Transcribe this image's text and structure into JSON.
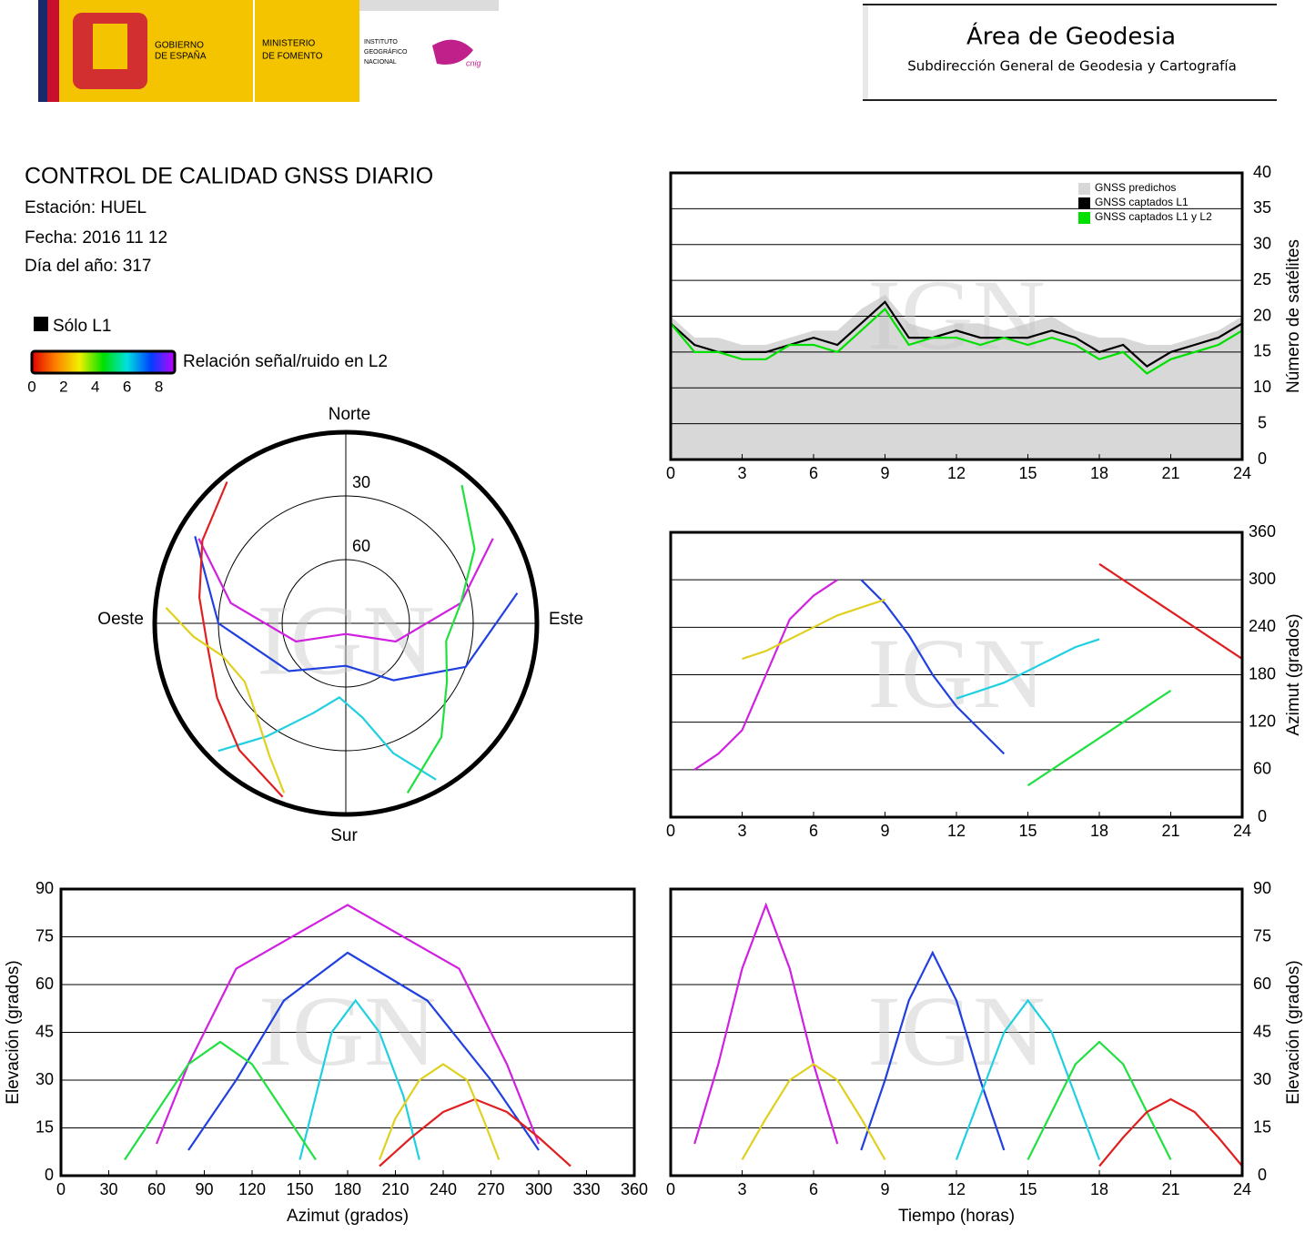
{
  "header": {
    "gov_line1": "GOBIERNO",
    "gov_line2": "DE ESPAÑA",
    "ministry_line1": "MINISTERIO",
    "ministry_line2": "DE FOMENTO",
    "institute_lines": [
      "INSTITUTO",
      "GEOGRÁFICO",
      "NACIONAL"
    ],
    "cnig": "cnig",
    "area": "Área de Geodesia",
    "subdirection": "Subdirección General de Geodesia y Cartografía"
  },
  "report": {
    "title": "CONTROL DE CALIDAD GNSS DIARIO",
    "station": "Estación: HUEL",
    "date": "Fecha: 2016 11 12",
    "doy": "Día del año: 317",
    "legend_l1": "Sólo L1",
    "colorbar": {
      "label": "Relación señal/ruido en L2",
      "lim": [
        0,
        9
      ],
      "ticks": [
        0,
        2,
        4,
        6,
        8
      ],
      "colors": [
        "#e00000",
        "#ff8000",
        "#f0f000",
        "#00e000",
        "#00e0e0",
        "#0040ff",
        "#c000ff"
      ]
    }
  },
  "chart_data": [
    {
      "type": "line",
      "ylabel": "Número de satélites",
      "yaxis_side": "right",
      "xlim": [
        0,
        24
      ],
      "xticks": [
        0,
        3,
        6,
        9,
        12,
        15,
        18,
        21,
        24
      ],
      "ylim": [
        0,
        40
      ],
      "yticks": [
        0,
        5,
        10,
        15,
        20,
        25,
        30,
        35,
        40
      ],
      "grid": true,
      "legend": "upper right",
      "watermark": "IGN",
      "x": [
        0,
        1,
        2,
        3,
        4,
        5,
        6,
        7,
        8,
        9,
        10,
        11,
        12,
        13,
        14,
        15,
        16,
        17,
        18,
        19,
        20,
        21,
        22,
        23,
        24
      ],
      "series": [
        {
          "name": "GNSS predichos",
          "color": "#d8d8d8",
          "style": "area",
          "values": [
            20,
            17,
            17,
            16,
            16,
            17,
            18,
            18,
            21,
            23,
            19,
            18,
            19,
            19,
            18,
            19,
            20,
            18,
            17,
            17,
            16,
            16,
            17,
            18,
            20
          ]
        },
        {
          "name": "GNSS captados L1",
          "color": "#000000",
          "style": "line",
          "values": [
            19,
            16,
            15,
            15,
            15,
            16,
            17,
            16,
            19,
            22,
            17,
            17,
            18,
            17,
            17,
            17,
            18,
            17,
            15,
            16,
            13,
            15,
            16,
            17,
            19
          ]
        },
        {
          "name": "GNSS captados L1 y L2",
          "color": "#00e000",
          "style": "line",
          "values": [
            19,
            15,
            15,
            14,
            14,
            16,
            16,
            15,
            18,
            21,
            16,
            17,
            17,
            16,
            17,
            16,
            17,
            16,
            14,
            15,
            12,
            14,
            15,
            16,
            18
          ]
        }
      ]
    },
    {
      "type": "line",
      "ylabel": "Azimut (grados)",
      "yaxis_side": "right",
      "xlim": [
        0,
        24
      ],
      "xticks": [
        0,
        3,
        6,
        9,
        12,
        15,
        18,
        21,
        24
      ],
      "ylim": [
        0,
        360
      ],
      "yticks": [
        0,
        60,
        120,
        180,
        240,
        300,
        360
      ],
      "grid": true,
      "watermark": "IGN",
      "series": [
        {
          "color": "#d020e0",
          "x": [
            1,
            2,
            3,
            4,
            5,
            6,
            7
          ],
          "values": [
            60,
            80,
            110,
            180,
            250,
            280,
            300
          ]
        },
        {
          "color": "#2040e0",
          "x": [
            8,
            9,
            10,
            11,
            12,
            13,
            14
          ],
          "values": [
            300,
            270,
            230,
            180,
            140,
            110,
            80
          ]
        },
        {
          "color": "#20d0e0",
          "x": [
            12,
            13,
            14,
            15,
            16,
            17,
            18
          ],
          "values": [
            150,
            160,
            170,
            185,
            200,
            215,
            225
          ]
        },
        {
          "color": "#20e040",
          "x": [
            15,
            16,
            17,
            18,
            19,
            20,
            21
          ],
          "values": [
            40,
            60,
            80,
            100,
            120,
            140,
            160
          ]
        },
        {
          "color": "#e02020",
          "x": [
            18,
            19,
            20,
            21,
            22,
            23,
            24
          ],
          "values": [
            320,
            300,
            280,
            260,
            240,
            220,
            200
          ]
        },
        {
          "color": "#e0d020",
          "x": [
            3,
            4,
            5,
            6,
            7,
            8,
            9
          ],
          "values": [
            200,
            210,
            225,
            240,
            255,
            265,
            275
          ]
        }
      ]
    },
    {
      "type": "polar",
      "north": "Norte",
      "south": "Sur",
      "east": "Este",
      "west": "Oeste",
      "rlim": [
        90,
        0
      ],
      "rticks": [
        30,
        60
      ],
      "watermark": "IGN",
      "series": [
        {
          "color": "#d020e0",
          "theta": [
            60,
            80,
            110,
            180,
            250,
            280,
            300
          ],
          "r": [
            10,
            35,
            65,
            85,
            65,
            35,
            10
          ]
        },
        {
          "color": "#2040e0",
          "theta": [
            300,
            270,
            230,
            180,
            140,
            110,
            80
          ],
          "r": [
            8,
            30,
            55,
            70,
            55,
            30,
            8
          ]
        },
        {
          "color": "#20d0e0",
          "theta": [
            150,
            160,
            170,
            185,
            200,
            215,
            225
          ],
          "r": [
            5,
            25,
            45,
            55,
            45,
            25,
            5
          ]
        },
        {
          "color": "#20e040",
          "theta": [
            40,
            60,
            80,
            100,
            120,
            140,
            160
          ],
          "r": [
            5,
            20,
            35,
            42,
            35,
            20,
            5
          ]
        },
        {
          "color": "#e02020",
          "theta": [
            320,
            300,
            280,
            260,
            240,
            220,
            200
          ],
          "r": [
            3,
            12,
            20,
            24,
            20,
            12,
            3
          ]
        },
        {
          "color": "#e0d020",
          "theta": [
            200,
            210,
            225,
            240,
            255,
            265,
            275
          ],
          "r": [
            5,
            18,
            30,
            35,
            30,
            18,
            5
          ]
        }
      ]
    },
    {
      "type": "line",
      "xlabel": "Azimut (grados)",
      "ylabel": "Elevación (grados)",
      "yaxis_side": "left",
      "xlim": [
        0,
        360
      ],
      "xticks": [
        0,
        30,
        60,
        90,
        120,
        150,
        180,
        210,
        240,
        270,
        300,
        330,
        360
      ],
      "ylim": [
        0,
        90
      ],
      "yticks": [
        0,
        15,
        30,
        45,
        60,
        75,
        90
      ],
      "grid": true,
      "watermark": "IGN",
      "series": [
        {
          "color": "#d020e0",
          "x": [
            60,
            80,
            110,
            180,
            250,
            280,
            300
          ],
          "values": [
            10,
            35,
            65,
            85,
            65,
            35,
            10
          ]
        },
        {
          "color": "#2040e0",
          "x": [
            300,
            270,
            230,
            180,
            140,
            110,
            80
          ],
          "values": [
            8,
            30,
            55,
            70,
            55,
            30,
            8
          ]
        },
        {
          "color": "#20d0e0",
          "x": [
            150,
            160,
            170,
            185,
            200,
            215,
            225
          ],
          "values": [
            5,
            25,
            45,
            55,
            45,
            25,
            5
          ]
        },
        {
          "color": "#20e040",
          "x": [
            40,
            60,
            80,
            100,
            120,
            140,
            160
          ],
          "values": [
            5,
            20,
            35,
            42,
            35,
            20,
            5
          ]
        },
        {
          "color": "#e02020",
          "x": [
            320,
            300,
            280,
            260,
            240,
            220,
            200
          ],
          "values": [
            3,
            12,
            20,
            24,
            20,
            12,
            3
          ]
        },
        {
          "color": "#e0d020",
          "x": [
            200,
            210,
            225,
            240,
            255,
            265,
            275
          ],
          "values": [
            5,
            18,
            30,
            35,
            30,
            18,
            5
          ]
        }
      ]
    },
    {
      "type": "line",
      "xlabel": "Tiempo (horas)",
      "ylabel": "Elevación (grados)",
      "yaxis_side": "right",
      "xlim": [
        0,
        24
      ],
      "xticks": [
        0,
        3,
        6,
        9,
        12,
        15,
        18,
        21,
        24
      ],
      "ylim": [
        0,
        90
      ],
      "yticks": [
        0,
        15,
        30,
        45,
        60,
        75,
        90
      ],
      "grid": true,
      "watermark": "IGN",
      "series": [
        {
          "color": "#d020e0",
          "x": [
            1,
            2,
            3,
            4,
            5,
            6,
            7
          ],
          "values": [
            10,
            35,
            65,
            85,
            65,
            35,
            10
          ]
        },
        {
          "color": "#2040e0",
          "x": [
            8,
            9,
            10,
            11,
            12,
            13,
            14
          ],
          "values": [
            8,
            30,
            55,
            70,
            55,
            30,
            8
          ]
        },
        {
          "color": "#20d0e0",
          "x": [
            12,
            13,
            14,
            15,
            16,
            17,
            18
          ],
          "values": [
            5,
            25,
            45,
            55,
            45,
            25,
            5
          ]
        },
        {
          "color": "#20e040",
          "x": [
            15,
            16,
            17,
            18,
            19,
            20,
            21
          ],
          "values": [
            5,
            20,
            35,
            42,
            35,
            20,
            5
          ]
        },
        {
          "color": "#e02020",
          "x": [
            18,
            19,
            20,
            21,
            22,
            23,
            24
          ],
          "values": [
            3,
            12,
            20,
            24,
            20,
            12,
            3
          ]
        },
        {
          "color": "#e0d020",
          "x": [
            3,
            4,
            5,
            6,
            7,
            8,
            9
          ],
          "values": [
            5,
            18,
            30,
            35,
            30,
            18,
            5
          ]
        }
      ]
    }
  ]
}
